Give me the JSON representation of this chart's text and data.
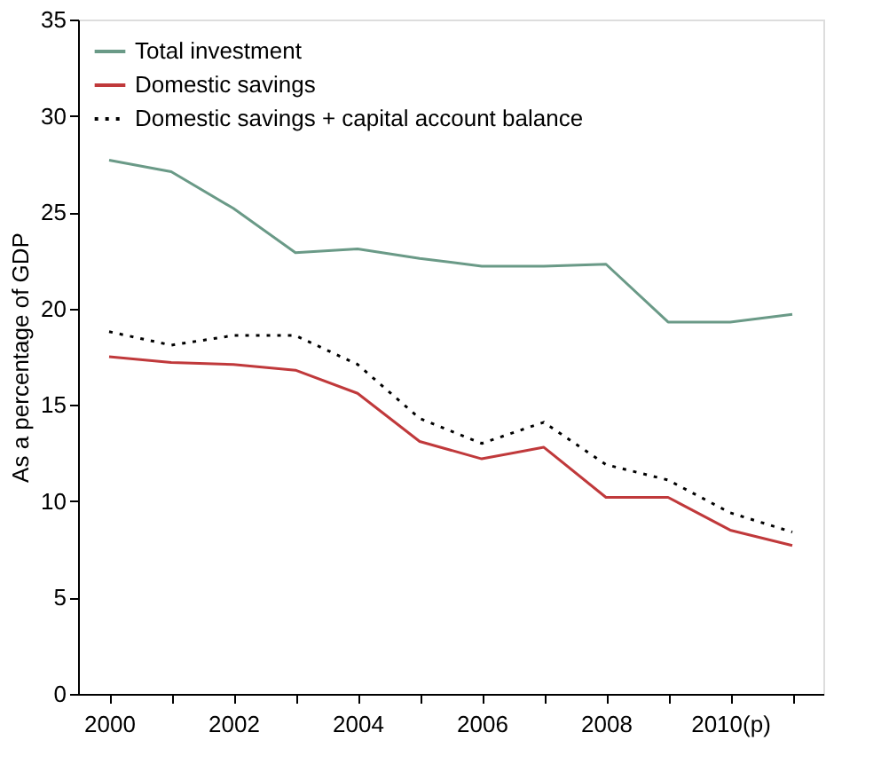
{
  "chart_data": {
    "type": "line",
    "ylabel": "As a percentage of GDP",
    "categories": [
      "2000",
      null,
      "2002",
      null,
      "2004",
      null,
      "2006",
      null,
      "2008",
      null,
      "2010(p)",
      null
    ],
    "series": [
      {
        "name": "Total investment",
        "color": "#6a9a87",
        "line_style": "solid",
        "values": [
          27.7,
          27.1,
          25.2,
          22.9,
          23.1,
          22.6,
          22.2,
          22.2,
          22.3,
          19.3,
          19.3,
          19.7
        ]
      },
      {
        "name": "Domestic savings",
        "color": "#c0393b",
        "line_style": "solid",
        "values": [
          17.5,
          17.2,
          17.1,
          16.8,
          15.6,
          13.1,
          12.2,
          12.8,
          10.2,
          10.2,
          8.5,
          7.7
        ]
      },
      {
        "name": "Domestic savings + capital account balance",
        "color": "#000000",
        "line_style": "dotted",
        "values": [
          18.8,
          18.1,
          18.6,
          18.6,
          17.1,
          14.3,
          13.0,
          14.1,
          11.9,
          11.1,
          9.4,
          8.4
        ]
      }
    ],
    "ylim": [
      0,
      35
    ],
    "yticks": [
      0,
      5,
      10,
      15,
      20,
      25,
      30,
      35
    ],
    "grid": false,
    "legend": "top left"
  }
}
